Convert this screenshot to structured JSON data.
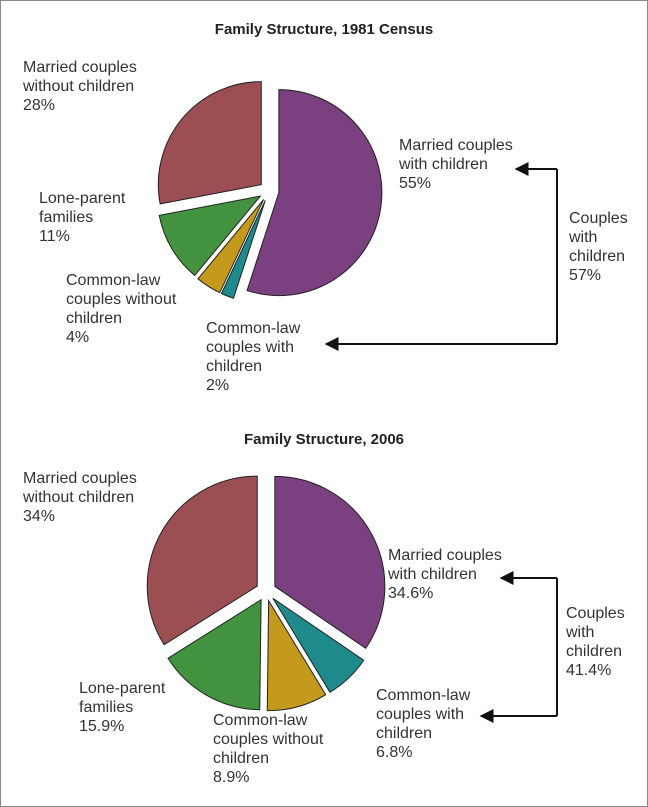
{
  "chart_data": [
    {
      "type": "pie",
      "title": "Family Structure, 1981 Census",
      "categories": [
        "Married couples with children",
        "Common-law couples with children",
        "Common-law couples without children",
        "Lone-parent families",
        "Married couples without children"
      ],
      "values": [
        55,
        2,
        4,
        11,
        28
      ],
      "value_labels": [
        "55%",
        "2%",
        "4%",
        "11%",
        "28%"
      ],
      "colors": [
        "#7b4080",
        "#1f8a8c",
        "#c49a1c",
        "#42923f",
        "#9c4f52"
      ],
      "annotation": "Couples with children 57%"
    },
    {
      "type": "pie",
      "title": "Family Structure, 2006",
      "categories": [
        "Married couples with children",
        "Common-law couples with children",
        "Common-law couples without children",
        "Lone-parent families",
        "Married couples without children"
      ],
      "values": [
        34.6,
        6.8,
        8.9,
        15.9,
        34
      ],
      "value_labels": [
        "34.6%",
        "6.8%",
        "8.9%",
        "15.9%",
        "34%"
      ],
      "colors": [
        "#7b4080",
        "#1f8a8c",
        "#c49a1c",
        "#42923f",
        "#9c4f52"
      ],
      "annotation": "Couples with children 41.4%"
    }
  ]
}
